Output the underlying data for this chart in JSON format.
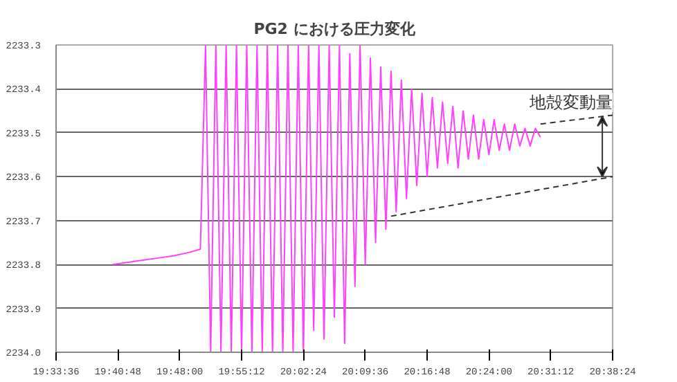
{
  "chart_data": {
    "type": "line",
    "title": "PG2 における圧力変化",
    "xlim": [
      19.56,
      20.64
    ],
    "xticks": [
      {
        "value": 19.56,
        "label": "19:33:36"
      },
      {
        "value": 19.68,
        "label": "19:40:48"
      },
      {
        "value": 19.8,
        "label": "19:48:00"
      },
      {
        "value": 19.92,
        "label": "19:55:12"
      },
      {
        "value": 20.04,
        "label": "20:02:24"
      },
      {
        "value": 20.16,
        "label": "20:09:36"
      },
      {
        "value": 20.28,
        "label": "20:16:48"
      },
      {
        "value": 20.4,
        "label": "20:24:00"
      },
      {
        "value": 20.52,
        "label": "20:31:12"
      },
      {
        "value": 20.64,
        "label": "20:38:24"
      }
    ],
    "ylim": [
      2234.0,
      2233.3
    ],
    "yticks": [
      2233.3,
      2233.4,
      2233.5,
      2233.6,
      2233.7,
      2233.8,
      2233.9,
      {
        "value": 2234.0,
        "label": "2234.0"
      }
    ],
    "grid": "y",
    "marker": "none",
    "annotations": [
      {
        "text": "地殻変動量",
        "x": 20.62,
        "y": 2233.6
      }
    ],
    "series": [
      {
        "color": "#ff40ff",
        "line_style": "solid",
        "x": [
          19.67,
          19.7,
          19.73,
          19.76,
          19.79,
          19.82,
          19.84,
          19.85,
          19.86,
          19.87,
          19.88,
          19.89,
          19.9,
          19.91,
          19.92,
          19.93,
          19.94,
          19.95,
          19.96,
          19.97,
          19.98,
          19.99,
          20.0,
          20.01,
          20.02,
          20.03,
          20.04,
          20.05,
          20.06,
          20.07,
          20.08,
          20.09,
          20.1,
          20.11,
          20.12,
          20.13,
          20.14,
          20.15,
          20.16,
          20.17,
          20.18,
          20.19,
          20.2,
          20.21,
          20.22,
          20.23,
          20.24,
          20.25,
          20.26,
          20.27,
          20.28,
          20.29,
          20.3,
          20.31,
          20.32,
          20.33,
          20.34,
          20.35,
          20.36,
          20.37,
          20.38,
          20.39,
          20.4,
          20.41,
          20.42,
          20.43,
          20.44,
          20.45,
          20.46,
          20.47,
          20.48,
          20.49,
          20.5
        ],
        "values": [
          2233.8,
          2233.795,
          2233.79,
          2233.785,
          2233.78,
          2233.772,
          2233.765,
          2233.3,
          2234.0,
          2233.3,
          2234.0,
          2233.3,
          2234.0,
          2233.3,
          2234.0,
          2233.3,
          2234.0,
          2233.3,
          2234.0,
          2233.3,
          2234.0,
          2233.3,
          2234.0,
          2233.3,
          2234.0,
          2233.3,
          2234.0,
          2233.3,
          2233.95,
          2233.3,
          2233.97,
          2233.3,
          2233.92,
          2233.3,
          2233.98,
          2233.32,
          2233.85,
          2233.3,
          2233.8,
          2233.33,
          2233.75,
          2233.35,
          2233.72,
          2233.36,
          2233.68,
          2233.38,
          2233.65,
          2233.4,
          2233.62,
          2233.41,
          2233.6,
          2233.42,
          2233.58,
          2233.43,
          2233.57,
          2233.44,
          2233.58,
          2233.45,
          2233.56,
          2233.46,
          2233.56,
          2233.47,
          2233.55,
          2233.47,
          2233.54,
          2233.48,
          2233.54,
          2233.48,
          2233.53,
          2233.49,
          2233.53,
          2233.49,
          2233.51
        ]
      },
      {
        "color": "#333333",
        "line_style": "dashed",
        "x": [
          20.5,
          20.64
        ],
        "values": [
          2233.48,
          2233.46
        ]
      },
      {
        "color": "#333333",
        "line_style": "dashed",
        "x": [
          20.21,
          20.64
        ],
        "values": [
          2233.69,
          2233.6
        ]
      }
    ]
  }
}
